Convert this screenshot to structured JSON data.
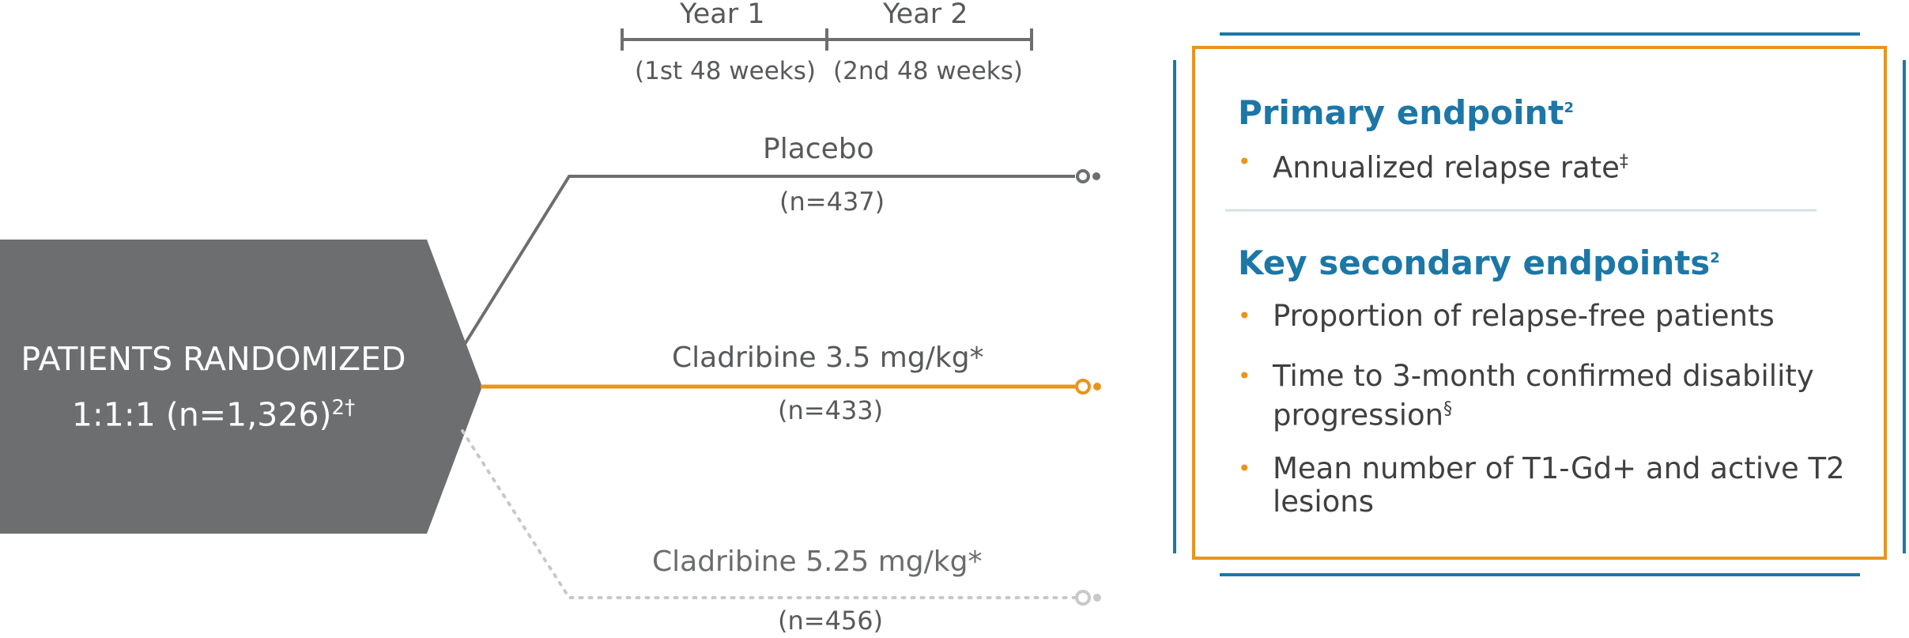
{
  "timeline": {
    "year1": "Year 1",
    "year2": "Year 2",
    "year1_weeks": "(1st 48 weeks)",
    "year2_weeks": "(2nd 48 weeks)"
  },
  "patients": {
    "line1": "PATIENTS RANDOMIZED",
    "line2": "1:1:1 (n=1,326)",
    "line2_sup": "2†"
  },
  "arms": [
    {
      "label": "Placebo",
      "n": "(n=437)",
      "color": "#6d6e70",
      "style": "solid"
    },
    {
      "label": "Cladribine 3.5 mg/kg*",
      "n": "(n=433)",
      "color": "#e8941e",
      "style": "solid"
    },
    {
      "label": "Cladribine 5.25 mg/kg*",
      "n": "(n=456)",
      "color": "#c8c8c8",
      "style": "dotted"
    }
  ],
  "endpoints": {
    "primary_title": "Primary endpoint",
    "primary_title_sup": "2",
    "primary_items": [
      {
        "text": "Annualized relapse rate",
        "sup": "‡"
      }
    ],
    "secondary_title": "Key secondary endpoints",
    "secondary_title_sup": "2",
    "secondary_items": [
      {
        "text": "Proportion of relapse-free patients",
        "sup": ""
      },
      {
        "text": "Time to 3-month confirmed disability progression",
        "sup": "§"
      },
      {
        "text": "Mean number of T1-Gd+ and active T2 lesions",
        "sup": ""
      }
    ]
  },
  "colors": {
    "primary_blue": "#1c77a6",
    "orange": "#e8941e",
    "gray_dark": "#6d6e70",
    "gray_light": "#c8c8c8",
    "divider": "#d4e2e6"
  }
}
